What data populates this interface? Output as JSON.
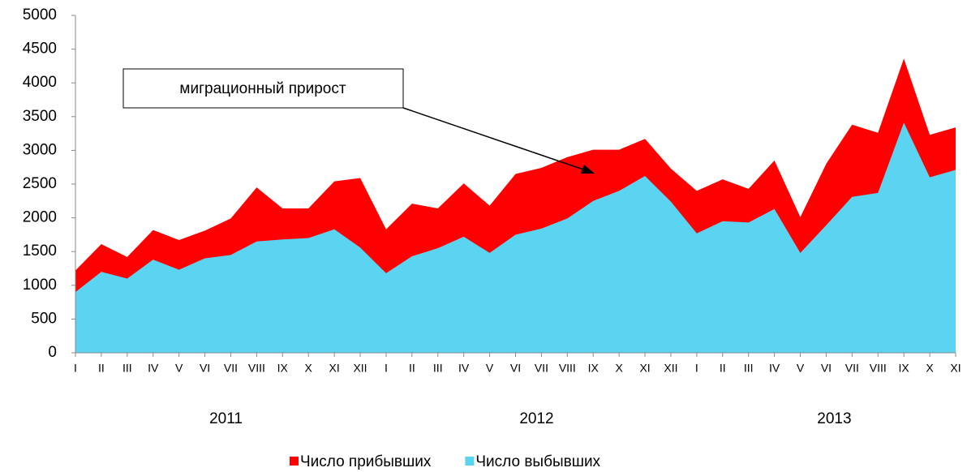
{
  "chart_data": {
    "type": "area",
    "categories": [
      "I",
      "II",
      "III",
      "IV",
      "V",
      "VI",
      "VII",
      "VIII",
      "IX",
      "X",
      "XI",
      "XII",
      "I",
      "II",
      "III",
      "IV",
      "V",
      "VI",
      "VII",
      "VIII",
      "IX",
      "X",
      "XI",
      "XII",
      "I",
      "II",
      "III",
      "IV",
      "V",
      "VI",
      "VII",
      "VIII",
      "IX",
      "X",
      "XI"
    ],
    "year_labels": [
      "2011",
      "2012",
      "2013"
    ],
    "series": [
      {
        "name": "Число прибывших",
        "color": "#ff0000",
        "values": [
          1220,
          1610,
          1420,
          1820,
          1670,
          1810,
          1990,
          2450,
          2140,
          2140,
          2540,
          2590,
          1830,
          2210,
          2140,
          2510,
          2180,
          2650,
          2740,
          2900,
          3010,
          3010,
          3170,
          2730,
          2400,
          2570,
          2430,
          2850,
          2010,
          2800,
          3380,
          3260,
          4360,
          3230,
          3340
        ]
      },
      {
        "name": "Число выбывших",
        "color": "#5ad4f0",
        "values": [
          900,
          1200,
          1100,
          1380,
          1230,
          1400,
          1450,
          1650,
          1680,
          1700,
          1830,
          1560,
          1180,
          1430,
          1550,
          1720,
          1480,
          1750,
          1840,
          1990,
          2250,
          2400,
          2620,
          2240,
          1770,
          1950,
          1930,
          2130,
          1480,
          1890,
          2310,
          2370,
          3410,
          2600,
          2710
        ]
      }
    ],
    "annotation": "миграционный прирост",
    "ylim": [
      0,
      5000
    ],
    "yticks": [
      0,
      500,
      1000,
      1500,
      2000,
      2500,
      3000,
      3500,
      4000,
      4500,
      5000
    ],
    "grid": false,
    "legend": "bottom"
  }
}
